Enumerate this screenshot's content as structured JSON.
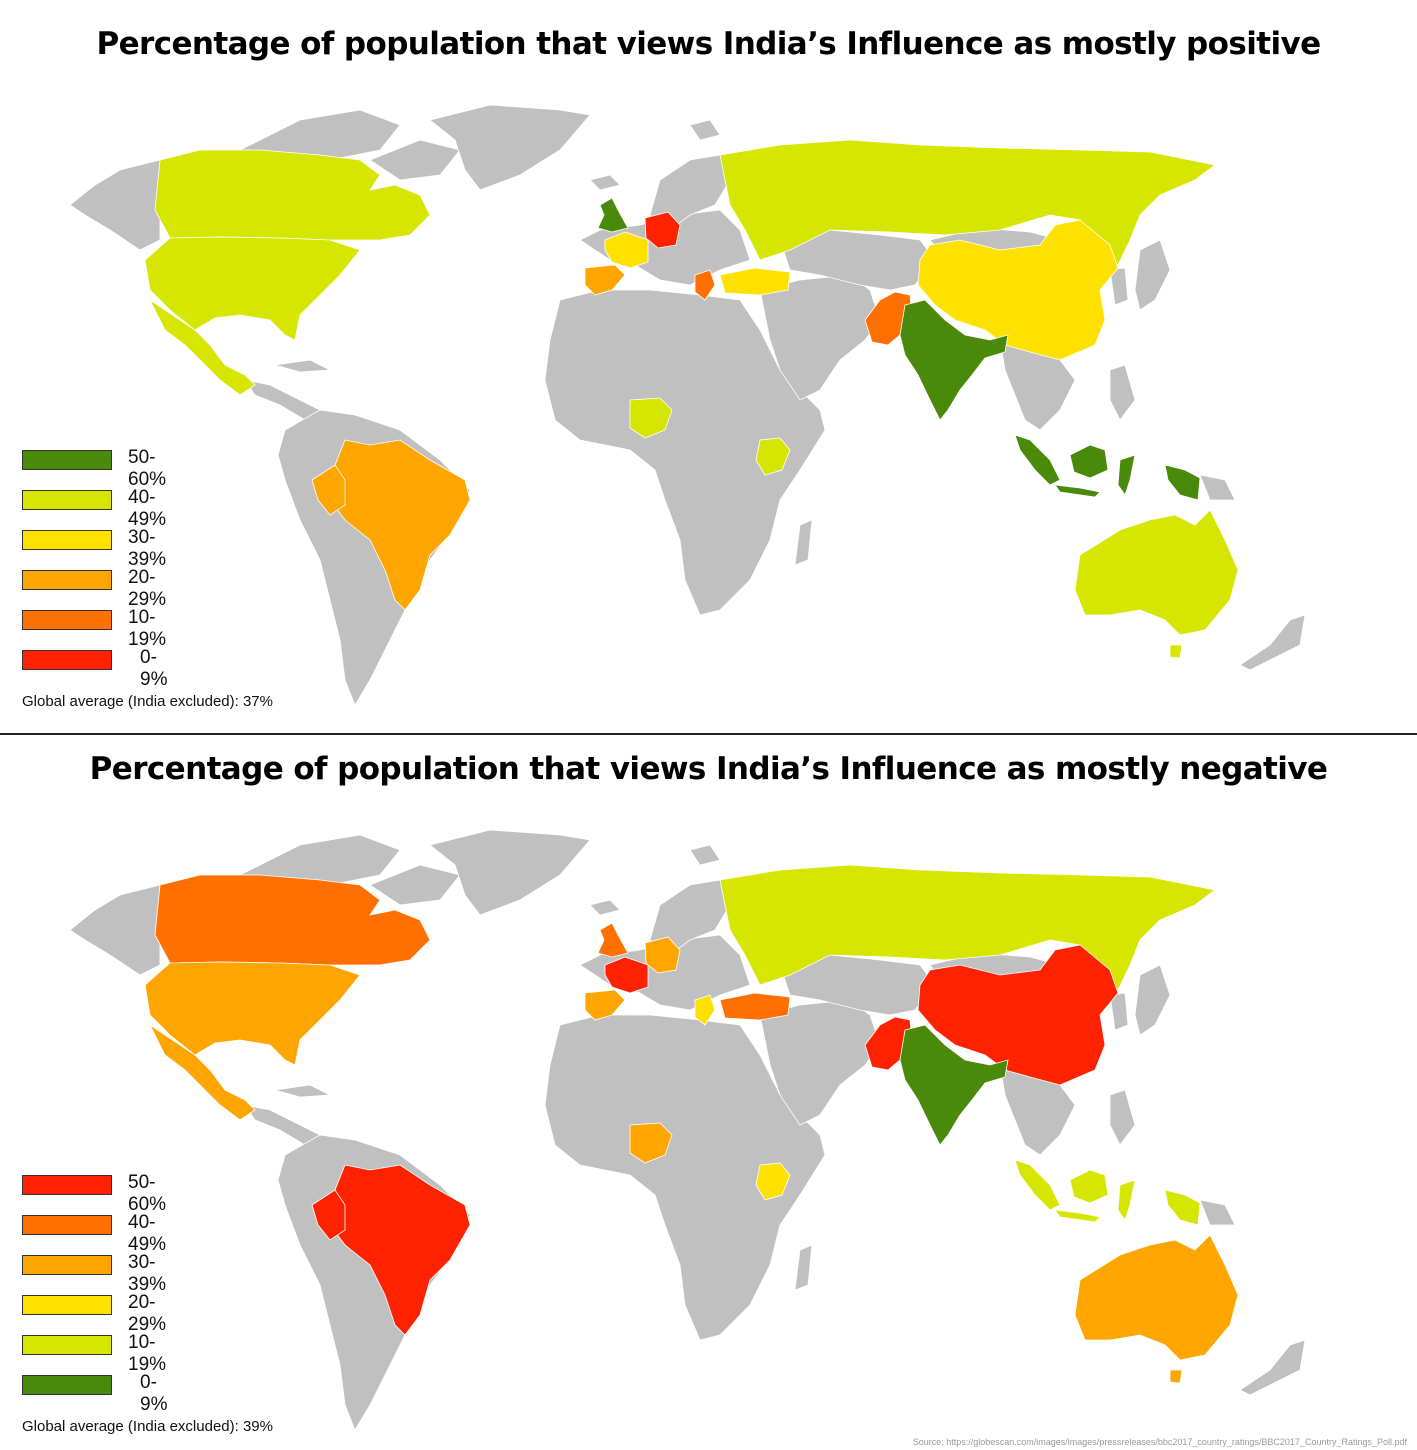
{
  "colors": {
    "land": "#c0c0c0",
    "c_green": "#4a8a0a",
    "c_yellowgreen": "#d6e600",
    "c_yellow": "#ffe100",
    "c_lightorange": "#ffa500",
    "c_orange": "#ff7000",
    "c_red": "#ff2200"
  },
  "panels": [
    {
      "title": "Percentage of population that views India’s Influence as mostly positive",
      "legend": [
        {
          "label": "50-60%",
          "color": "#4a8a0a"
        },
        {
          "label": "40-49%",
          "color": "#d6e600"
        },
        {
          "label": "30-39%",
          "color": "#ffe100"
        },
        {
          "label": "20-29%",
          "color": "#ffa500"
        },
        {
          "label": "10-19%",
          "color": "#ff7000"
        },
        {
          "label": "0-9%",
          "color": "#ff2200"
        }
      ],
      "average": "Global average (India excluded): 37%",
      "country_colors": {
        "canada": "#d6e600",
        "usa": "#d6e600",
        "mexico": "#d6e600",
        "brazil": "#ffa500",
        "peru": "#ffa500",
        "uk": "#4a8a0a",
        "france": "#ffe100",
        "germany": "#ff2200",
        "spain": "#ffa500",
        "greece": "#ff7000",
        "turkey": "#ffe100",
        "russia": "#d6e600",
        "china": "#ffe100",
        "pakistan": "#ff7000",
        "india": "#4a8a0a",
        "indonesia": "#4a8a0a",
        "nigeria": "#d6e600",
        "kenya": "#d6e600",
        "australia": "#d6e600"
      }
    },
    {
      "title": "Percentage of population that views India’s Influence as mostly negative",
      "legend": [
        {
          "label": "50-60%",
          "color": "#ff2200"
        },
        {
          "label": "40-49%",
          "color": "#ff7000"
        },
        {
          "label": "30-39%",
          "color": "#ffa500"
        },
        {
          "label": "20-29%",
          "color": "#ffe100"
        },
        {
          "label": "10-19%",
          "color": "#d6e600"
        },
        {
          "label": "0-9%",
          "color": "#4a8a0a"
        }
      ],
      "average": "Global average (India excluded): 39%",
      "country_colors": {
        "canada": "#ff7000",
        "usa": "#ffa500",
        "mexico": "#ffa500",
        "brazil": "#ff2200",
        "peru": "#ff2200",
        "uk": "#ff7000",
        "france": "#ff2200",
        "germany": "#ffa500",
        "spain": "#ffa500",
        "greece": "#ffe100",
        "turkey": "#ff7000",
        "russia": "#d6e600",
        "china": "#ff2200",
        "pakistan": "#ff2200",
        "india": "#4a8a0a",
        "indonesia": "#d6e600",
        "nigeria": "#ffa500",
        "kenya": "#ffe100",
        "australia": "#ffa500"
      }
    }
  ],
  "source": "Source: https://globescan.com/images/images/pressreleases/bbc2017_country_ratings/BBC2017_Country_Ratings_Poll.pdf"
}
